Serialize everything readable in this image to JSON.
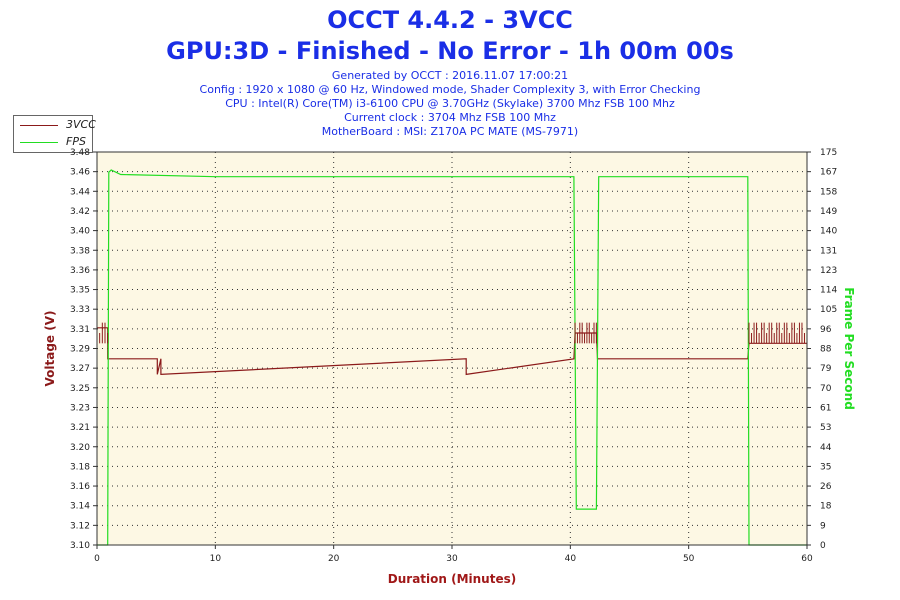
{
  "header": {
    "title": "OCCT 4.4.2 - 3VCC",
    "subtitle": "GPU:3D - Finished - No Error - 1h 00m 00s",
    "info_lines": [
      "Generated by OCCT : 2016.11.07 17:00:21",
      "Config : 1920 x 1080 @ 60 Hz, Windowed mode, Shader Complexity 3, with Error Checking",
      "CPU : Intel(R) Core(TM) i3-6100 CPU @ 3.70GHz (Skylake) 3700 Mhz FSB 100 Mhz",
      "Current clock : 3704 Mhz FSB 100 Mhz",
      "MotherBoard : MSI: Z170A PC MATE (MS-7971)"
    ]
  },
  "colors": {
    "voltage": "#8b1a1a",
    "fps": "#22dd22",
    "plot_bg": "#fdf8e4",
    "title": "#1a2ee6",
    "xlabel": "#a01818"
  },
  "chart_data": {
    "type": "line",
    "xlabel": "Duration (Minutes)",
    "ylabel_left": "Voltage (V)",
    "ylabel_right": "Frame Per Second",
    "xlim": [
      0,
      60
    ],
    "ylim_left": [
      3.1,
      3.48
    ],
    "ylim_right": [
      0,
      175
    ],
    "x_ticks": [
      "0",
      "10",
      "20",
      "30",
      "40",
      "50",
      "60"
    ],
    "y_ticks_left": [
      "3.10",
      "3.12",
      "3.14",
      "3.16",
      "3.18",
      "3.20",
      "3.21",
      "3.23",
      "3.25",
      "3.27",
      "3.29",
      "3.31",
      "3.33",
      "3.35",
      "3.36",
      "3.38",
      "3.40",
      "3.42",
      "3.44",
      "3.46",
      "3.48"
    ],
    "y_ticks_right": [
      "0",
      "9",
      "18",
      "26",
      "35",
      "44",
      "53",
      "61",
      "70",
      "79",
      "88",
      "96",
      "105",
      "114",
      "123",
      "131",
      "140",
      "149",
      "158",
      "167",
      "175"
    ],
    "grid": true,
    "legend_position": "top-left outside",
    "series": [
      {
        "name": "3VCC",
        "axis": "left",
        "x": [
          0,
          0.9,
          0.9,
          5.1,
          5.1,
          5.4,
          5.4,
          31.2,
          31.2,
          40.3,
          40.4,
          42.2,
          42.3,
          55.0,
          55.1,
          60
        ],
        "y": [
          3.31,
          3.31,
          3.28,
          3.28,
          3.265,
          3.28,
          3.265,
          3.28,
          3.265,
          3.28,
          3.305,
          3.305,
          3.28,
          3.28,
          3.295,
          3.295
        ]
      },
      {
        "name": "FPS",
        "axis": "right",
        "x": [
          0,
          0.9,
          1.0,
          1.2,
          2.0,
          10,
          20,
          30,
          40.0,
          40.3,
          40.5,
          42.2,
          42.4,
          43,
          55.0,
          55.1,
          60
        ],
        "y": [
          0,
          0,
          166,
          167,
          165,
          164,
          164,
          164,
          164,
          164,
          16,
          16,
          164,
          164,
          164,
          0,
          0
        ]
      }
    ]
  }
}
